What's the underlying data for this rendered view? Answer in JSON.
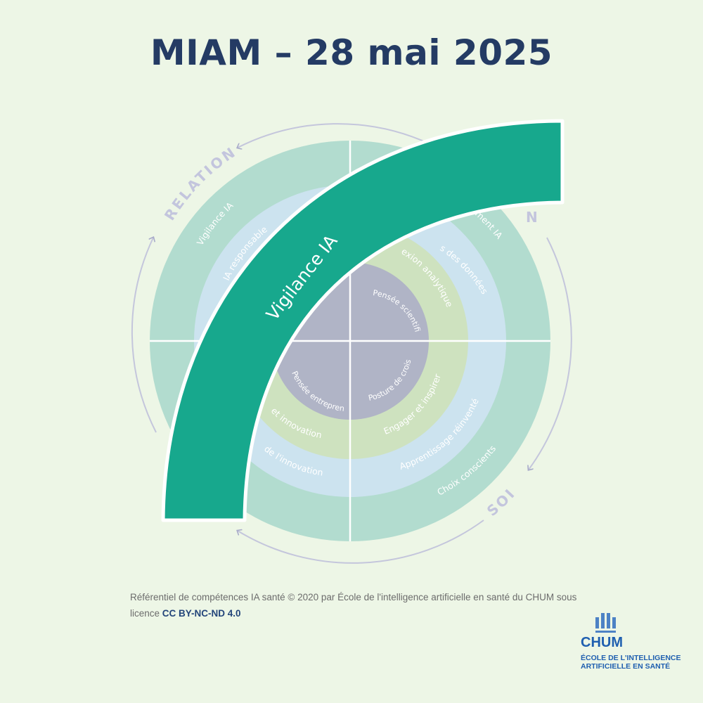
{
  "title": "MIAM – 28 mai 2025",
  "diagram": {
    "banner": "Vigilance IA",
    "quadrants": [
      "RELATION",
      "SOI"
    ],
    "outer_ring": [
      "Vigilance IA",
      "Choix conscients"
    ],
    "blue_ring": [
      "IA responsable",
      "Apprentissage réinventé"
    ],
    "green_ring": [
      "Engager et inspirer"
    ],
    "core": [
      "Pensée scientifique",
      "Pensée entrepreneuriale",
      "Posture de croissance"
    ],
    "partial_labels": [
      "ment IA",
      "s des données",
      "exion analytique",
      "et innovation",
      "de l'innovation",
      "N"
    ],
    "colors": {
      "banner": "#17a88d",
      "outer_ring": "#b2dccf",
      "blue_ring": "#cce3ef",
      "green_ring": "#cee2bf",
      "core": "#b0b4c6"
    }
  },
  "credit": {
    "text": "Référentiel de compétences IA santé © 2020 par École de l'intelligence artificielle en santé du CHUM sous licence",
    "license": "CC BY-NC-ND 4.0"
  },
  "logo": {
    "name": "CHUM",
    "subtitle_line1": "ÉCOLE DE L'INTELLIGENCE",
    "subtitle_line2": "ARTIFICIELLE EN SANTÉ"
  }
}
